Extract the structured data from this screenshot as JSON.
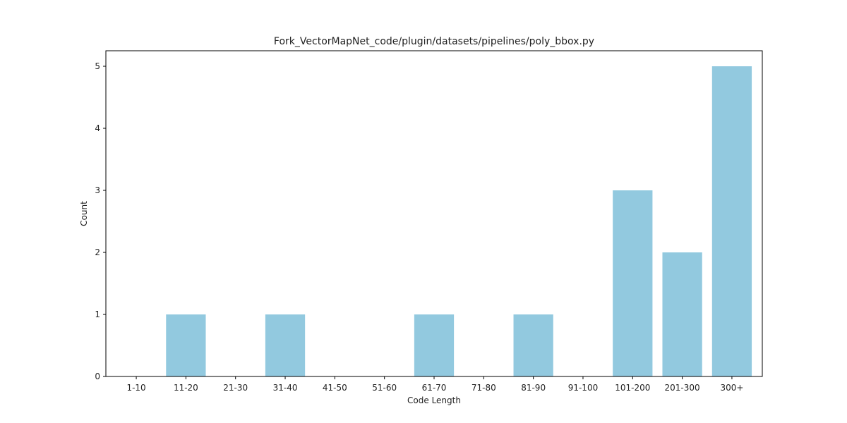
{
  "chart_data": {
    "type": "bar",
    "title": "Fork_VectorMapNet_code/plugin/datasets/pipelines/poly_bbox.py",
    "xlabel": "Code Length",
    "ylabel": "Count",
    "categories": [
      "1-10",
      "11-20",
      "21-30",
      "31-40",
      "41-50",
      "51-60",
      "61-70",
      "71-80",
      "81-90",
      "91-100",
      "101-200",
      "201-300",
      "300+"
    ],
    "values": [
      0,
      1,
      0,
      1,
      0,
      0,
      1,
      0,
      1,
      0,
      3,
      2,
      5
    ],
    "ylim": [
      0,
      5.25
    ],
    "yticks": [
      0,
      1,
      2,
      3,
      4,
      5
    ],
    "bar_color": "#92c9df",
    "grid": false,
    "legend": "none"
  }
}
